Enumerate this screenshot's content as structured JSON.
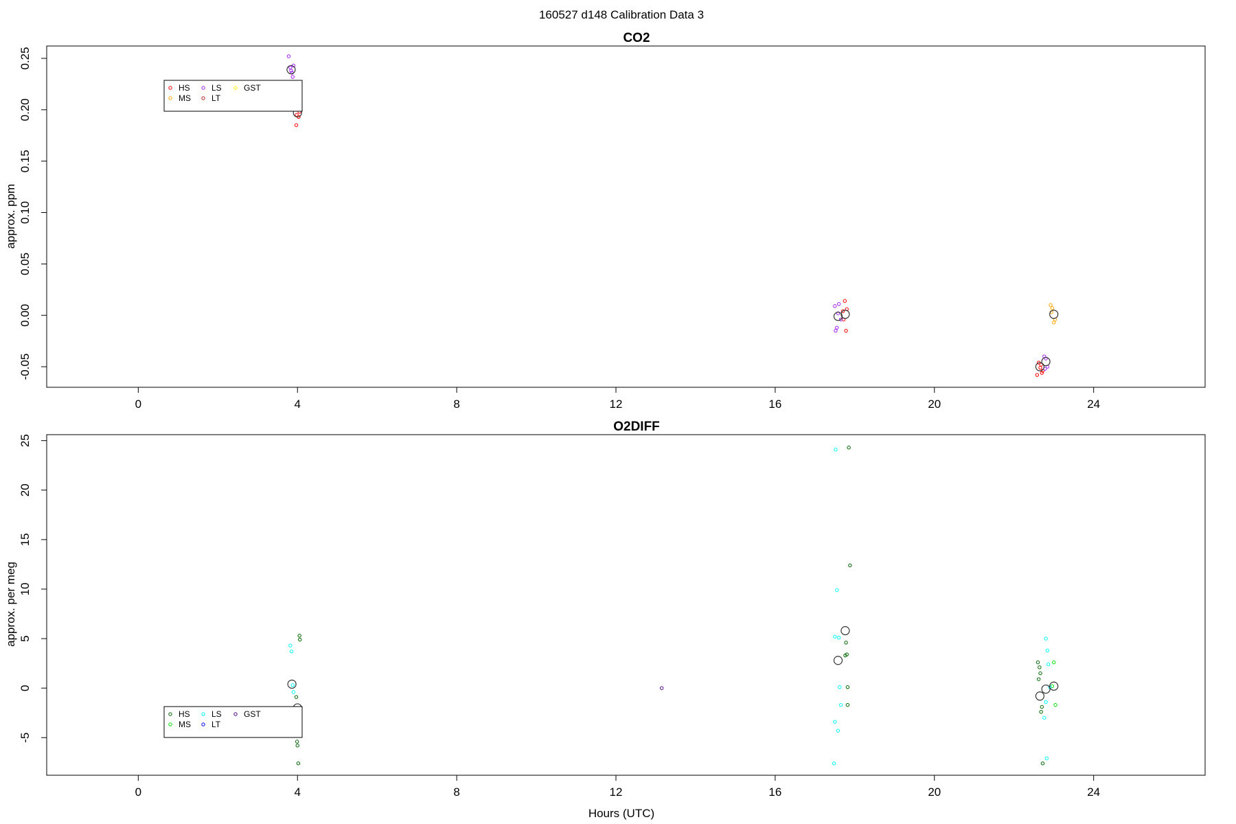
{
  "suptitle": "160527   d148   Calibration Data 3",
  "chart_data": [
    {
      "type": "scatter",
      "title": "CO2",
      "ylabel": "approx. ppm",
      "xlabel": "",
      "xlim": [
        -2.3,
        26.8
      ],
      "ylim": [
        -0.07,
        0.262
      ],
      "xticks": [
        "0",
        "4",
        "8",
        "12",
        "16",
        "20",
        "24"
      ],
      "xtick_values": [
        0,
        4,
        8,
        12,
        16,
        20,
        24
      ],
      "yticks": [
        "-0.05",
        "0.00",
        "0.05",
        "0.10",
        "0.15",
        "0.20",
        "0.25"
      ],
      "ytick_values": [
        -0.05,
        0,
        0.05,
        0.1,
        0.15,
        0.2,
        0.25
      ],
      "legend_position": "top-left",
      "legend": [
        {
          "label": "HS",
          "color": "#ff0000"
        },
        {
          "label": "MS",
          "color": "#ffa500"
        },
        {
          "label": "LS",
          "color": "#a020f0"
        },
        {
          "label": "LT",
          "color": "#b22222"
        },
        {
          "label": "GST",
          "color": "#ffff00"
        }
      ],
      "series": [
        {
          "name": "HS",
          "color": "#ff0000",
          "x": [
            3.98,
            4.01,
            4.03,
            4.05,
            3.97,
            17.7,
            17.75,
            17.72,
            17.78,
            17.8,
            22.62,
            22.66,
            22.7,
            22.58,
            22.68,
            22.72
          ],
          "y": [
            0.195,
            0.2,
            0.193,
            0.198,
            0.185,
            0.004,
            0.014,
            -0.004,
            -0.015,
            0.006,
            -0.046,
            -0.051,
            -0.056,
            -0.058,
            -0.048,
            -0.054
          ]
        },
        {
          "name": "MS",
          "color": "#ffa500",
          "x": [
            22.92,
            22.96,
            23.0,
            23.03,
            22.94
          ],
          "y": [
            0.01,
            0.007,
            -0.007,
            -0.004,
            0.003
          ]
        },
        {
          "name": "LS",
          "color": "#a020f0",
          "x": [
            3.78,
            3.82,
            3.86,
            3.88,
            3.9,
            3.84,
            17.5,
            17.55,
            17.6,
            17.65,
            17.52,
            17.58,
            22.76,
            22.8,
            22.84,
            22.78
          ],
          "y": [
            0.252,
            0.241,
            0.236,
            0.232,
            0.243,
            0.238,
            0.009,
            -0.012,
            0.011,
            -0.004,
            -0.015,
            0.002,
            -0.04,
            -0.042,
            -0.05,
            -0.052
          ]
        },
        {
          "name": "LT",
          "color": "#b22222",
          "x": [],
          "y": []
        },
        {
          "name": "GST",
          "color": "#ffff00",
          "x": [],
          "y": []
        }
      ],
      "means": {
        "x": [
          3.84,
          4.0,
          17.58,
          17.76,
          22.65,
          22.8,
          23.0
        ],
        "y": [
          0.239,
          0.197,
          -0.001,
          0.001,
          -0.05,
          -0.045,
          0.001
        ]
      }
    },
    {
      "type": "scatter",
      "title": "O2DIFF",
      "ylabel": "approx. per meg",
      "xlabel": "Hours (UTC)",
      "xlim": [
        -2.3,
        26.8
      ],
      "ylim": [
        -8.8,
        25.6
      ],
      "xticks": [
        "0",
        "4",
        "8",
        "12",
        "16",
        "20",
        "24"
      ],
      "xtick_values": [
        0,
        4,
        8,
        12,
        16,
        20,
        24
      ],
      "yticks": [
        "-5",
        "0",
        "5",
        "10",
        "15",
        "20",
        "25"
      ],
      "ytick_values": [
        -5,
        0,
        5,
        10,
        15,
        20,
        25
      ],
      "legend_position": "bottom-left",
      "legend": [
        {
          "label": "HS",
          "color": "#006400"
        },
        {
          "label": "MS",
          "color": "#00dd00"
        },
        {
          "label": "LS",
          "color": "#00ffff"
        },
        {
          "label": "LT",
          "color": "#0000ff"
        },
        {
          "label": "GST",
          "color": "#4b0082"
        }
      ],
      "series": [
        {
          "name": "HS",
          "color": "#006400",
          "x": [
            4.05,
            4.06,
            3.97,
            3.99,
            4.0,
            4.02,
            17.85,
            17.88,
            17.78,
            17.8,
            17.82,
            17.82,
            17.76,
            22.6,
            22.64,
            22.66,
            22.7,
            22.62,
            22.68,
            22.72
          ],
          "y": [
            5.3,
            4.9,
            -0.9,
            -5.4,
            -5.8,
            -7.6,
            24.3,
            12.4,
            4.6,
            3.4,
            0.1,
            -1.7,
            3.3,
            2.6,
            2.1,
            1.5,
            -1.9,
            0.9,
            -2.4,
            -7.6
          ]
        },
        {
          "name": "MS",
          "color": "#00dd00",
          "x": [
            23.0,
            23.04,
            22.96
          ],
          "y": [
            2.6,
            -1.7,
            0.2
          ]
        },
        {
          "name": "LS",
          "color": "#00ffff",
          "x": [
            3.82,
            3.85,
            3.9,
            3.88,
            17.52,
            17.55,
            17.6,
            17.62,
            17.5,
            17.58,
            17.65,
            17.48,
            17.5,
            22.8,
            22.84,
            22.86,
            22.9,
            22.76,
            22.8,
            22.82
          ],
          "y": [
            4.3,
            3.7,
            -0.4,
            0.3,
            24.1,
            9.9,
            5.1,
            0.1,
            -3.4,
            -4.3,
            -1.7,
            -7.6,
            5.2,
            5.0,
            3.8,
            2.4,
            0.1,
            -3.0,
            -1.4,
            -7.1
          ]
        },
        {
          "name": "LT",
          "color": "#0000ff",
          "x": [],
          "y": []
        },
        {
          "name": "GST",
          "color": "#4b0082",
          "x": [
            13.15
          ],
          "y": [
            0.0
          ]
        }
      ],
      "means": {
        "x": [
          3.86,
          4.0,
          17.58,
          17.76,
          22.65,
          22.8,
          23.0
        ],
        "y": [
          0.4,
          -2.0,
          2.8,
          5.8,
          -0.8,
          -0.1,
          0.2
        ]
      }
    }
  ]
}
